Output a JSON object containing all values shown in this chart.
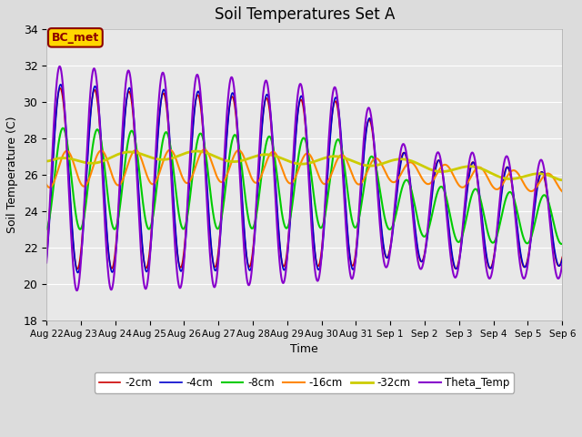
{
  "title": "Soil Temperatures Set A",
  "xlabel": "Time",
  "ylabel": "Soil Temperature (C)",
  "ylim": [
    18,
    34
  ],
  "background_color": "#dcdcdc",
  "plot_bg_color": "#e8e8e8",
  "grid_color": "white",
  "annotation_text": "BC_met",
  "annotation_color": "#8B0000",
  "annotation_bg": "#FFD700",
  "series": {
    "cm2": {
      "label": "-2cm",
      "color": "#cc0000"
    },
    "cm4": {
      "label": "-4cm",
      "color": "#0000cc"
    },
    "cm8": {
      "label": "-8cm",
      "color": "#00cc00"
    },
    "cm16": {
      "label": "-16cm",
      "color": "#ff8800"
    },
    "cm32": {
      "label": "-32cm",
      "color": "#cccc00"
    },
    "theta": {
      "label": "Theta_Temp",
      "color": "#8800cc"
    }
  },
  "tick_labels": [
    "Aug 22",
    "Aug 23",
    "Aug 24",
    "Aug 25",
    "Aug 26",
    "Aug 27",
    "Aug 28",
    "Aug 29",
    "Aug 30",
    "Aug 31",
    "Sep 1",
    "Sep 2",
    "Sep 3",
    "Sep 4",
    "Sep 5",
    "Sep 6"
  ],
  "tick_positions": [
    0,
    1,
    2,
    3,
    4,
    5,
    6,
    7,
    8,
    9,
    10,
    11,
    12,
    13,
    14,
    15
  ],
  "yticks": [
    18,
    20,
    22,
    24,
    26,
    28,
    30,
    32,
    34
  ]
}
